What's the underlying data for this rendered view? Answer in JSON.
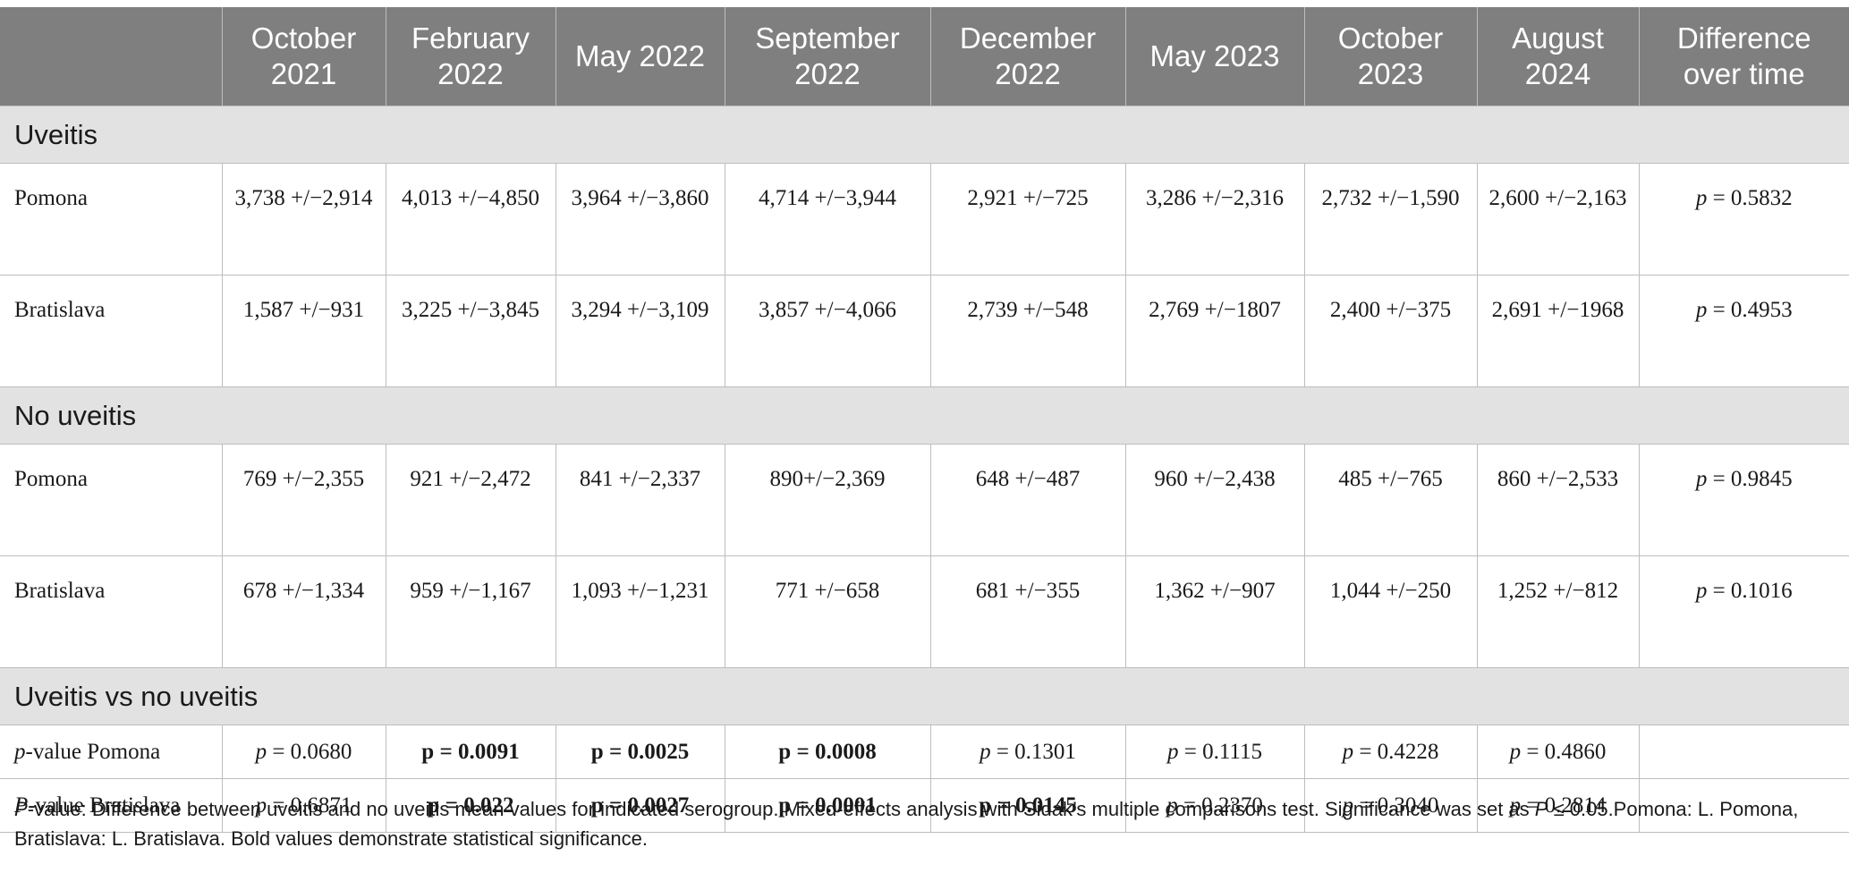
{
  "header": {
    "columns": [
      "",
      "October 2021",
      "February 2022",
      "May 2022",
      "September 2022",
      "December 2022",
      "May 2023",
      "October 2023",
      "August 2024",
      "Difference over time"
    ]
  },
  "sections": [
    {
      "title": "Uveitis",
      "rows": [
        {
          "label": "Pomona",
          "cells": [
            "3,738 +/−2,914",
            "4,013 +/−4,850",
            "3,964 +/−3,860",
            "4,714 +/−3,944",
            "2,921 +/−725",
            "3,286 +/−2,316",
            "2,732 +/−1,590",
            "2,600 +/−2,163"
          ],
          "p_prefix": "p",
          "p_value": " = 0.5832"
        },
        {
          "label": "Bratislava",
          "cells": [
            "1,587 +/−931",
            "3,225 +/−3,845",
            "3,294 +/−3,109",
            "3,857 +/−4,066",
            "2,739 +/−548",
            "2,769 +/−1807",
            "2,400 +/−375",
            "2,691 +/−1968"
          ],
          "p_prefix": "p",
          "p_value": " = 0.4953"
        }
      ]
    },
    {
      "title": "No uveitis",
      "rows": [
        {
          "label": "Pomona",
          "cells": [
            "769 +/−2,355",
            "921 +/−2,472",
            "841 +/−2,337",
            "890+/−2,369",
            "648 +/−487",
            "960 +/−2,438",
            "485 +/−765",
            "860 +/−2,533"
          ],
          "p_prefix": "p",
          "p_value": " = 0.9845"
        },
        {
          "label": "Bratislava",
          "cells": [
            "678 +/−1,334",
            "959 +/−1,167",
            "1,093 +/−1,231",
            "771 +/−658",
            "681 +/−355",
            "1,362 +/−907",
            "1,044 +/−250",
            "1,252 +/−812"
          ],
          "p_prefix": "p",
          "p_value": " = 0.1016"
        }
      ]
    },
    {
      "title": "Uveitis vs no uveitis"
    }
  ],
  "comparison_rows": [
    {
      "label_prefix": "p",
      "label_rest": "-value Pomona",
      "cells": [
        {
          "text": "p = 0.0680",
          "bold": false
        },
        {
          "text": "p = 0.0091",
          "bold": true
        },
        {
          "text": "p = 0.0025",
          "bold": true
        },
        {
          "text": "p = 0.0008",
          "bold": true
        },
        {
          "text": "p = 0.1301",
          "bold": false
        },
        {
          "text": "p = 0.1115",
          "bold": false
        },
        {
          "text": "p = 0.4228",
          "bold": false
        },
        {
          "text": "p = 0.4860",
          "bold": false
        }
      ]
    },
    {
      "label_prefix": "P",
      "label_rest": "-value Bratislava",
      "cells": [
        {
          "text": "p = 0.6871",
          "bold": false
        },
        {
          "text": "p = 0.022",
          "bold": true
        },
        {
          "text": "p = 0.0027",
          "bold": true
        },
        {
          "text": "p = 0.0001",
          "bold": true
        },
        {
          "text": "p = 0.0145",
          "bold": true
        },
        {
          "text": "p = 0.2370",
          "bold": false
        },
        {
          "text": "p = 0.3040",
          "bold": false
        },
        {
          "text": "p = 0.2814",
          "bold": false
        }
      ]
    }
  ],
  "footnote": {
    "lead": "P",
    "text_1": "-value: Difference between uveitis and no uveitis mean values for indicated serogroup. Mixed-effects analysis with Sidak’s multiple comparisons test. Significance was set as ",
    "p_symbol": "P",
    "text_2": " ≤ 0.05.Pomona: L. Pomona, Bratislava: L. Bratislava. Bold values demonstrate statistical significance."
  }
}
